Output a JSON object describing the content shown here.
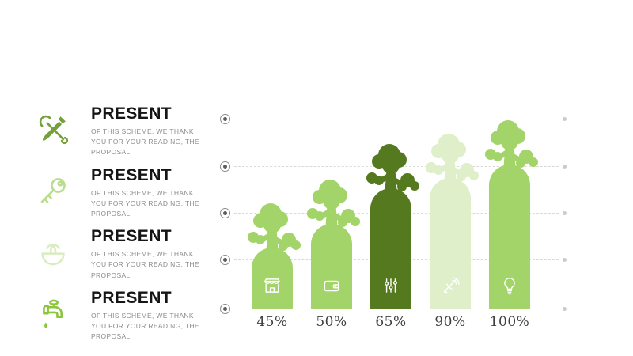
{
  "slide": {
    "background": "#ffffff"
  },
  "left_panel": {
    "items": [
      {
        "icon": "tools-icon",
        "icon_color": "#76a03c",
        "title": "PRESENT",
        "body": "OF THIS SCHEME, WE THANK YOU FOR YOUR READING, THE PROPOSAL"
      },
      {
        "icon": "key-icon",
        "icon_color": "#b9dd8e",
        "title": "PRESENT",
        "body": "OF THIS SCHEME, WE THANK YOU FOR YOUR READING, THE PROPOSAL"
      },
      {
        "icon": "sprout-bowl-icon",
        "icon_color": "#d9ecbf",
        "title": "PRESENT",
        "body": "OF THIS SCHEME, WE THANK YOU FOR YOUR READING, THE PROPOSAL"
      },
      {
        "icon": "faucet-icon",
        "icon_color": "#8cc63f",
        "title": "PRESENT",
        "body": "OF THIS SCHEME, WE THANK YOU FOR YOUR READING, THE PROPOSAL"
      }
    ]
  },
  "chart_data": {
    "type": "bar",
    "title": "",
    "xlabel": "",
    "ylabel": "",
    "unit": "%",
    "categories": [
      "45%",
      "50%",
      "65%",
      "90%",
      "100%"
    ],
    "values": [
      45,
      50,
      65,
      90,
      100
    ],
    "bars": [
      {
        "label": "45%",
        "value": 45,
        "color": "#a3d469",
        "icon": "storefront-icon"
      },
      {
        "label": "50%",
        "value": 50,
        "color": "#a3d469",
        "icon": "wallet-icon"
      },
      {
        "label": "65%",
        "value": 65,
        "color": "#55791e",
        "icon": "sliders-icon"
      },
      {
        "label": "90%",
        "value": 90,
        "color": "#dfefc9",
        "icon": "satellite-dish-icon"
      },
      {
        "label": "100%",
        "value": 100,
        "color": "#a3d469",
        "icon": "lightbulb-icon"
      }
    ],
    "gridline_count": 5,
    "grid_style": "dashed",
    "grid_color": "#d9d9d9",
    "axis_marker_color": "#5d5d5d",
    "label_color": "#3f3f3f",
    "legend": "none"
  }
}
